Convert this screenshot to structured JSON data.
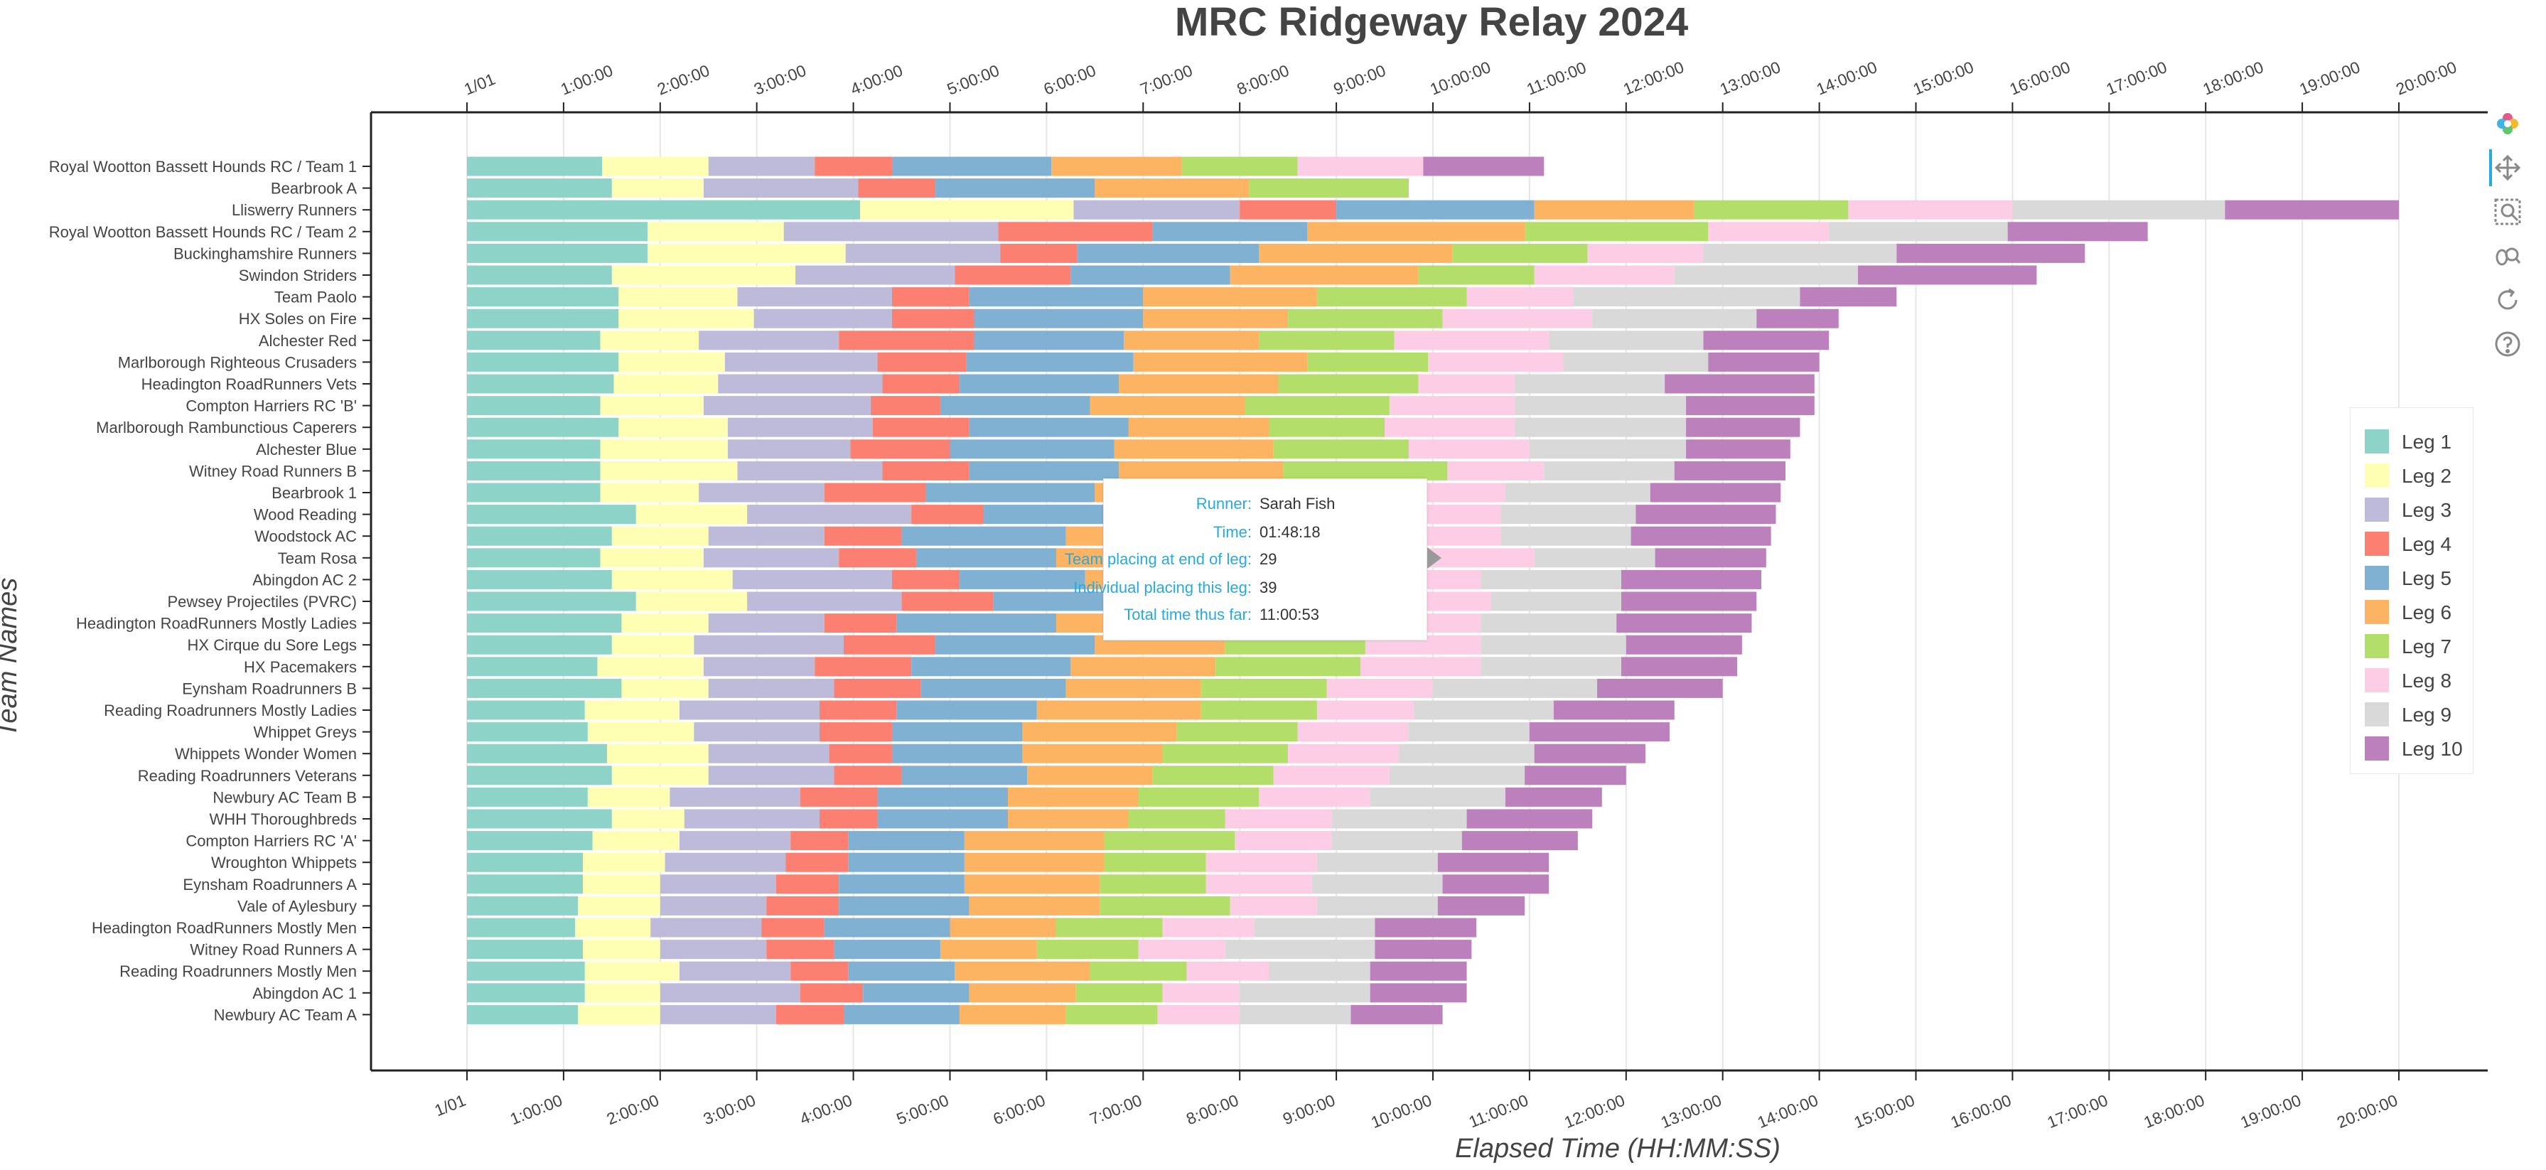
{
  "chart_data": {
    "type": "bar",
    "orientation": "horizontal-stacked",
    "title": "MRC Ridgeway Relay 2024",
    "xlabel": "Elapsed Time (HH:MM:SS)",
    "ylabel": "Team Names",
    "xlim_hours": [
      0,
      21
    ],
    "x_ticks": [
      "1/01",
      "1:00:00",
      "2:00:00",
      "3:00:00",
      "4:00:00",
      "5:00:00",
      "6:00:00",
      "7:00:00",
      "8:00:00",
      "9:00:00",
      "10:00:00",
      "11:00:00",
      "12:00:00",
      "13:00:00",
      "14:00:00",
      "15:00:00",
      "16:00:00",
      "17:00:00",
      "18:00:00",
      "19:00:00",
      "20:00:00"
    ],
    "grid": "vertical",
    "legend_position": "right",
    "legend": [
      "Leg 1",
      "Leg 2",
      "Leg 3",
      "Leg 4",
      "Leg 5",
      "Leg 6",
      "Leg 7",
      "Leg 8",
      "Leg 9",
      "Leg 10"
    ],
    "colors": [
      "#8dd3c7",
      "#ffffb3",
      "#bebada",
      "#fb8072",
      "#80b1d3",
      "#fdb462",
      "#b3de69",
      "#fccde5",
      "#d9d9d9",
      "#bc80bd"
    ],
    "value_units": "hours elapsed at end of each leg",
    "teams": [
      {
        "name": "Royal Wootton Bassett Hounds RC / Team 1",
        "leg_end_hours": [
          1.4,
          2.5,
          3.6,
          4.4,
          6.05,
          7.4,
          8.6,
          9.9,
          null,
          11.15
        ]
      },
      {
        "name": "Bearbrook A",
        "leg_end_hours": [
          1.5,
          2.45,
          4.05,
          4.85,
          6.5,
          8.1,
          9.75,
          null,
          null,
          null
        ]
      },
      {
        "name": "Lliswerry Runners",
        "leg_end_hours": [
          4.07,
          6.28,
          8.0,
          9.0,
          11.05,
          12.7,
          14.3,
          16.0,
          18.2,
          20.0
        ]
      },
      {
        "name": "Royal Wootton Bassett Hounds RC / Team 2",
        "leg_end_hours": [
          1.87,
          3.28,
          5.5,
          7.1,
          8.7,
          10.95,
          12.85,
          14.1,
          15.95,
          17.4
        ]
      },
      {
        "name": "Buckinghamshire Runners",
        "leg_end_hours": [
          1.87,
          3.92,
          5.52,
          6.32,
          8.2,
          10.2,
          11.6,
          12.8,
          14.8,
          16.75
        ]
      },
      {
        "name": "Swindon Striders",
        "leg_end_hours": [
          1.5,
          3.4,
          5.05,
          6.25,
          7.9,
          9.85,
          11.05,
          12.5,
          14.4,
          16.25
        ]
      },
      {
        "name": "Team Paolo",
        "leg_end_hours": [
          1.57,
          2.8,
          4.4,
          5.2,
          7.0,
          8.8,
          10.35,
          11.45,
          13.8,
          14.8
        ]
      },
      {
        "name": "HX Soles on Fire",
        "leg_end_hours": [
          1.57,
          2.97,
          4.4,
          5.25,
          7.0,
          8.5,
          10.1,
          11.65,
          13.35,
          14.2
        ]
      },
      {
        "name": "Alchester Red",
        "leg_end_hours": [
          1.38,
          2.4,
          3.85,
          5.25,
          6.8,
          8.2,
          9.6,
          11.2,
          12.8,
          14.1
        ]
      },
      {
        "name": "Marlborough Righteous Crusaders",
        "leg_end_hours": [
          1.57,
          2.67,
          4.25,
          5.17,
          6.9,
          8.7,
          9.95,
          11.35,
          12.85,
          14.0
        ]
      },
      {
        "name": "Headington RoadRunners Vets",
        "leg_end_hours": [
          1.52,
          2.6,
          4.3,
          5.1,
          6.75,
          8.4,
          9.85,
          10.85,
          12.4,
          13.95
        ]
      },
      {
        "name": "Compton Harriers RC 'B'",
        "leg_end_hours": [
          1.38,
          2.45,
          4.18,
          4.9,
          6.45,
          8.05,
          9.55,
          10.85,
          12.62,
          13.95
        ]
      },
      {
        "name": "Marlborough Rambunctious Caperers",
        "leg_end_hours": [
          1.57,
          2.7,
          4.2,
          5.2,
          6.85,
          8.3,
          9.5,
          10.85,
          12.62,
          13.8
        ]
      },
      {
        "name": "Alchester Blue",
        "leg_end_hours": [
          1.38,
          2.7,
          3.97,
          5.0,
          6.7,
          8.35,
          9.75,
          11.0,
          12.62,
          13.7
        ]
      },
      {
        "name": "Witney Road Runners B",
        "leg_end_hours": [
          1.38,
          2.8,
          4.3,
          5.2,
          6.75,
          8.45,
          10.15,
          11.15,
          12.5,
          13.65
        ]
      },
      {
        "name": "Bearbrook 1",
        "leg_end_hours": [
          1.38,
          2.4,
          3.7,
          4.75,
          6.5,
          7.6,
          8.8,
          10.75,
          12.25,
          13.6
        ]
      },
      {
        "name": "Wood Reading",
        "leg_end_hours": [
          1.75,
          2.9,
          4.6,
          5.35,
          6.7,
          7.75,
          8.9,
          10.7,
          12.1,
          13.55
        ]
      },
      {
        "name": "Woodstock AC",
        "leg_end_hours": [
          1.5,
          2.5,
          3.7,
          4.5,
          6.2,
          7.5,
          8.75,
          10.7,
          12.05,
          13.5
        ]
      },
      {
        "name": "Team Rosa",
        "leg_end_hours": [
          1.38,
          2.45,
          3.85,
          4.65,
          6.1,
          7.25,
          8.8,
          11.05,
          12.3,
          13.45
        ]
      },
      {
        "name": "Abingdon AC 2",
        "leg_end_hours": [
          1.5,
          2.75,
          4.4,
          5.1,
          6.4,
          7.3,
          8.55,
          10.5,
          11.95,
          13.4
        ]
      },
      {
        "name": "Pewsey Projectiles (PVRC)",
        "leg_end_hours": [
          1.75,
          2.9,
          4.5,
          5.45,
          6.9,
          8.1,
          9.25,
          10.6,
          11.95,
          13.35
        ]
      },
      {
        "name": "Headington RoadRunners Mostly Ladies",
        "leg_end_hours": [
          1.6,
          2.5,
          3.7,
          4.45,
          6.1,
          7.55,
          9.15,
          10.5,
          11.9,
          13.3
        ]
      },
      {
        "name": "HX Cirque du Sore Legs",
        "leg_end_hours": [
          1.5,
          2.35,
          3.9,
          4.85,
          6.5,
          7.85,
          9.3,
          10.5,
          12.0,
          13.2
        ]
      },
      {
        "name": "HX Pacemakers",
        "leg_end_hours": [
          1.35,
          2.45,
          3.6,
          4.6,
          6.25,
          7.75,
          9.25,
          10.5,
          11.95,
          13.15
        ]
      },
      {
        "name": "Eynsham Roadrunners B",
        "leg_end_hours": [
          1.6,
          2.5,
          3.8,
          4.7,
          6.2,
          7.6,
          8.9,
          10.0,
          11.7,
          13.0
        ]
      },
      {
        "name": "Reading Roadrunners Mostly Ladies",
        "leg_end_hours": [
          1.22,
          2.2,
          3.65,
          4.45,
          5.9,
          7.6,
          8.8,
          9.8,
          11.25,
          12.5
        ]
      },
      {
        "name": "Whippet Greys",
        "leg_end_hours": [
          1.25,
          2.35,
          3.65,
          4.4,
          5.75,
          7.35,
          8.6,
          9.75,
          11.0,
          12.45
        ]
      },
      {
        "name": "Whippets Wonder Women",
        "leg_end_hours": [
          1.45,
          2.5,
          3.75,
          4.4,
          5.75,
          7.2,
          8.5,
          9.65,
          11.05,
          12.2
        ]
      },
      {
        "name": "Reading Roadrunners Veterans",
        "leg_end_hours": [
          1.5,
          2.5,
          3.8,
          4.5,
          5.8,
          7.1,
          8.35,
          9.55,
          10.95,
          12.0
        ]
      },
      {
        "name": "Newbury AC Team B",
        "leg_end_hours": [
          1.25,
          2.1,
          3.45,
          4.25,
          5.6,
          6.95,
          8.2,
          9.35,
          10.75,
          11.75
        ]
      },
      {
        "name": "WHH Thoroughbreds",
        "leg_end_hours": [
          1.5,
          2.25,
          3.65,
          4.25,
          5.6,
          6.85,
          7.85,
          8.95,
          10.35,
          11.65
        ]
      },
      {
        "name": "Compton Harriers RC 'A'",
        "leg_end_hours": [
          1.3,
          2.2,
          3.35,
          3.95,
          5.15,
          6.6,
          7.95,
          8.95,
          10.3,
          11.5
        ]
      },
      {
        "name": "Wroughton Whippets",
        "leg_end_hours": [
          1.2,
          2.05,
          3.3,
          3.95,
          5.15,
          6.6,
          7.65,
          8.8,
          10.05,
          11.2
        ]
      },
      {
        "name": "Eynsham Roadrunners A",
        "leg_end_hours": [
          1.2,
          2.0,
          3.2,
          3.85,
          5.15,
          6.55,
          7.65,
          8.75,
          10.1,
          11.2
        ]
      },
      {
        "name": "Vale of Aylesbury",
        "leg_end_hours": [
          1.15,
          2.0,
          3.1,
          3.85,
          5.2,
          6.55,
          7.9,
          8.8,
          10.05,
          10.95
        ]
      },
      {
        "name": "Headington RoadRunners Mostly Men",
        "leg_end_hours": [
          1.12,
          1.9,
          3.05,
          3.7,
          5.0,
          6.1,
          7.2,
          8.15,
          9.4,
          10.45
        ]
      },
      {
        "name": "Witney Road Runners A",
        "leg_end_hours": [
          1.2,
          2.0,
          3.1,
          3.8,
          4.9,
          5.9,
          6.95,
          7.85,
          9.4,
          10.4
        ]
      },
      {
        "name": "Reading Roadrunners Mostly Men",
        "leg_end_hours": [
          1.22,
          2.2,
          3.35,
          3.95,
          5.05,
          6.45,
          7.45,
          8.3,
          9.35,
          10.35
        ]
      },
      {
        "name": "Abingdon AC 1",
        "leg_end_hours": [
          1.22,
          2.0,
          3.45,
          4.1,
          5.2,
          6.3,
          7.2,
          8.0,
          9.35,
          10.35
        ]
      },
      {
        "name": "Newbury AC Team A",
        "leg_end_hours": [
          1.15,
          2.0,
          3.2,
          3.9,
          5.1,
          6.2,
          7.15,
          8.0,
          9.15,
          10.1
        ]
      }
    ]
  },
  "tooltip": {
    "rows": [
      {
        "key": "Runner:",
        "value": "Sarah Fish"
      },
      {
        "key": "Time:",
        "value": "01:48:18"
      },
      {
        "key": "Team placing at end of leg:",
        "value": "29"
      },
      {
        "key": "Individual placing this leg:",
        "value": "39"
      },
      {
        "key": "Total time thus far:",
        "value": "11:00:53"
      }
    ]
  },
  "toolbar": {
    "tools": [
      "bokeh-logo-icon",
      "pan-icon",
      "box-zoom-icon",
      "wheel-zoom-icon",
      "reset-icon",
      "help-icon"
    ]
  }
}
